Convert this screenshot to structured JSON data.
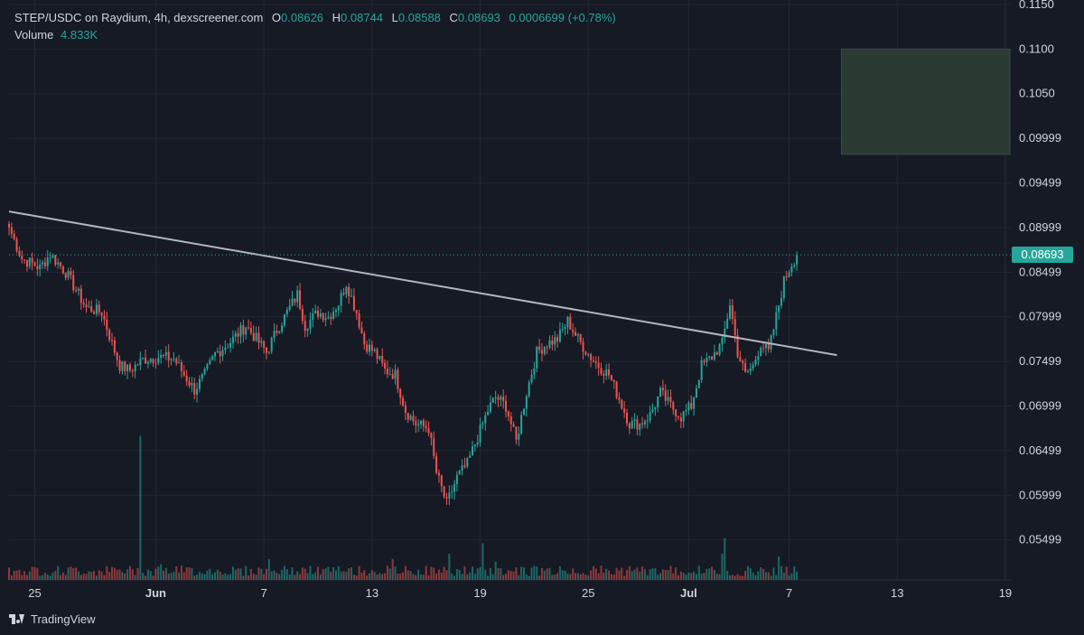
{
  "header": {
    "title": "STEP/USDC on Raydium, 4h, dexscreener.com",
    "o_label": "O",
    "o_value": "0.08626",
    "h_label": "H",
    "h_value": "0.08744",
    "l_label": "L",
    "l_value": "0.08588",
    "c_label": "C",
    "c_value": "0.08693",
    "change": "0.0006699 (+0.78%)",
    "volume_label": "Volume",
    "volume_value": "4.833K"
  },
  "footer": {
    "brand": "TradingView",
    "logo_icon": "tradingview-logo-icon"
  },
  "colors": {
    "up": "#26a69a",
    "down": "#ef5350",
    "background": "#161a25",
    "grid": "#242733",
    "text": "#d1d4dc",
    "trendline": "#b2b5be",
    "target_zone": "#2b3a33"
  },
  "chart_data": {
    "type": "candlestick",
    "y_ticks": [
      "0.1150",
      "0.1100",
      "0.1050",
      "0.09999",
      "0.09499",
      "0.08999",
      "0.08499",
      "0.07999",
      "0.07499",
      "0.06999",
      "0.06499",
      "0.05999",
      "0.05499"
    ],
    "x_ticks": [
      "25",
      "Jun",
      "7",
      "13",
      "19",
      "25",
      "Jul",
      "7",
      "13",
      "19",
      "25"
    ],
    "ylim": [
      0.0505,
      0.1155
    ],
    "last_price_label": "0.08693",
    "last_price": 0.08693,
    "trendline": {
      "start": {
        "candle": 0,
        "price": 0.0918
      },
      "end": {
        "candle": 290,
        "price": 0.0757
      }
    },
    "target_zone": {
      "candle_start": 290,
      "candle_end": 355,
      "price_low": 0.0982,
      "price_high": 0.11
    },
    "anchors": [
      [
        0,
        0.09
      ],
      [
        5,
        0.0865
      ],
      [
        12,
        0.0855
      ],
      [
        16,
        0.087
      ],
      [
        22,
        0.085
      ],
      [
        26,
        0.083
      ],
      [
        30,
        0.081
      ],
      [
        36,
        0.0805
      ],
      [
        40,
        0.077
      ],
      [
        43,
        0.0745
      ],
      [
        47,
        0.074
      ],
      [
        52,
        0.0752
      ],
      [
        58,
        0.0755
      ],
      [
        64,
        0.0753
      ],
      [
        68,
        0.0735
      ],
      [
        72,
        0.0718
      ],
      [
        76,
        0.0735
      ],
      [
        80,
        0.0758
      ],
      [
        86,
        0.0772
      ],
      [
        92,
        0.079
      ],
      [
        96,
        0.0775
      ],
      [
        100,
        0.076
      ],
      [
        104,
        0.0785
      ],
      [
        108,
        0.0805
      ],
      [
        112,
        0.0825
      ],
      [
        115,
        0.079
      ],
      [
        120,
        0.0805
      ],
      [
        124,
        0.08
      ],
      [
        128,
        0.0815
      ],
      [
        131,
        0.0838
      ],
      [
        135,
        0.0805
      ],
      [
        138,
        0.077
      ],
      [
        142,
        0.076
      ],
      [
        146,
        0.074
      ],
      [
        150,
        0.0735
      ],
      [
        154,
        0.0695
      ],
      [
        158,
        0.068
      ],
      [
        163,
        0.0675
      ],
      [
        166,
        0.0625
      ],
      [
        170,
        0.059
      ],
      [
        174,
        0.062
      ],
      [
        178,
        0.0635
      ],
      [
        182,
        0.0665
      ],
      [
        186,
        0.0695
      ],
      [
        189,
        0.071
      ],
      [
        193,
        0.07
      ],
      [
        197,
        0.066
      ],
      [
        201,
        0.0715
      ],
      [
        205,
        0.076
      ],
      [
        209,
        0.077
      ],
      [
        213,
        0.0775
      ],
      [
        217,
        0.0795
      ],
      [
        221,
        0.0775
      ],
      [
        225,
        0.0758
      ],
      [
        229,
        0.0745
      ],
      [
        233,
        0.0735
      ],
      [
        237,
        0.0708
      ],
      [
        241,
        0.068
      ],
      [
        245,
        0.068
      ],
      [
        249,
        0.069
      ],
      [
        253,
        0.0715
      ],
      [
        257,
        0.07
      ],
      [
        261,
        0.0688
      ],
      [
        265,
        0.07
      ],
      [
        269,
        0.0745
      ],
      [
        273,
        0.0755
      ],
      [
        277,
        0.077
      ],
      [
        280,
        0.0815
      ],
      [
        283,
        0.076
      ],
      [
        286,
        0.0735
      ],
      [
        289,
        0.0745
      ],
      [
        292,
        0.077
      ],
      [
        295,
        0.076
      ],
      [
        298,
        0.08
      ],
      [
        301,
        0.084
      ],
      [
        304,
        0.086
      ],
      [
        306,
        0.0869
      ]
    ],
    "volume_spikes": [
      {
        "candle": 51,
        "volume": 55
      },
      {
        "candle": 59,
        "volume": 6
      },
      {
        "candle": 101,
        "volume": 8
      },
      {
        "candle": 149,
        "volume": 8
      },
      {
        "candle": 171,
        "volume": 10
      },
      {
        "candle": 184,
        "volume": 14
      },
      {
        "candle": 189,
        "volume": 7
      },
      {
        "candle": 199,
        "volume": 5
      },
      {
        "candle": 277,
        "volume": 10
      },
      {
        "candle": 278,
        "volume": 16
      },
      {
        "candle": 299,
        "volume": 9
      }
    ],
    "grid": true
  }
}
